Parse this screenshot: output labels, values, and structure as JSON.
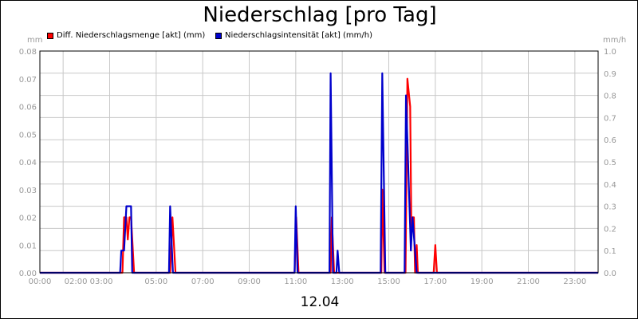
{
  "chart_data": {
    "type": "line",
    "title": "Niederschlag [pro Tag]",
    "left_unit": "mm",
    "right_unit": "mm/h",
    "date_label": "12.04",
    "x_ticks": [
      "00:00",
      "02:00 03:00",
      "05:00",
      "07:00",
      "09:00",
      "11:00",
      "13:00",
      "15:00",
      "17:00",
      "19:00",
      "21:00",
      "23:00"
    ],
    "y_left_ticks": [
      "0.00",
      "0.01",
      "0.02",
      "0.03",
      "0.04",
      "0.05",
      "0.06",
      "0.07",
      "0.08"
    ],
    "y_right_ticks": [
      "0.0",
      "0.1",
      "0.2",
      "0.3",
      "0.4",
      "0.5",
      "0.6",
      "0.7",
      "0.8",
      "0.9",
      "1.0"
    ],
    "ylim_left": [
      0,
      0.08
    ],
    "ylim_right": [
      0,
      1.0
    ],
    "xlim_hours": [
      0,
      24
    ],
    "grid": true,
    "legend_position": "top-left",
    "series": [
      {
        "name": "Diff. Niederschlagsmenge [akt] (mm)",
        "color": "#ff0000",
        "axis": "left",
        "points": [
          [
            0,
            0
          ],
          [
            3.55,
            0
          ],
          [
            3.62,
            0.02
          ],
          [
            3.72,
            0.02
          ],
          [
            3.78,
            0.012
          ],
          [
            3.85,
            0.02
          ],
          [
            3.92,
            0.02
          ],
          [
            4.05,
            0
          ],
          [
            5.6,
            0
          ],
          [
            5.7,
            0.02
          ],
          [
            5.83,
            0
          ],
          [
            10.95,
            0
          ],
          [
            11.02,
            0.02
          ],
          [
            11.12,
            0
          ],
          [
            12.5,
            0
          ],
          [
            12.55,
            0.02
          ],
          [
            12.65,
            0
          ],
          [
            14.68,
            0
          ],
          [
            14.72,
            0.03
          ],
          [
            14.82,
            0
          ],
          [
            15.72,
            0
          ],
          [
            15.8,
            0.07
          ],
          [
            15.92,
            0.06
          ],
          [
            15.97,
            0.016
          ],
          [
            16.02,
            0.02
          ],
          [
            16.08,
            0.02
          ],
          [
            16.13,
            0
          ],
          [
            16.2,
            0.01
          ],
          [
            16.25,
            0
          ],
          [
            16.93,
            0
          ],
          [
            17.0,
            0.01
          ],
          [
            17.07,
            0
          ],
          [
            24,
            0
          ]
        ]
      },
      {
        "name": "Niederschlagsintensität [akt] (mm/h)",
        "color": "#0000cc",
        "axis": "right",
        "points": [
          [
            0,
            0
          ],
          [
            3.45,
            0
          ],
          [
            3.5,
            0.1
          ],
          [
            3.62,
            0.1
          ],
          [
            3.72,
            0.3
          ],
          [
            3.92,
            0.3
          ],
          [
            3.97,
            0
          ],
          [
            5.55,
            0
          ],
          [
            5.6,
            0.3
          ],
          [
            5.72,
            0
          ],
          [
            10.95,
            0
          ],
          [
            11.0,
            0.3
          ],
          [
            11.08,
            0
          ],
          [
            12.45,
            0
          ],
          [
            12.5,
            0.9
          ],
          [
            12.6,
            0
          ],
          [
            12.75,
            0
          ],
          [
            12.8,
            0.1
          ],
          [
            12.87,
            0
          ],
          [
            14.65,
            0
          ],
          [
            14.72,
            0.9
          ],
          [
            14.85,
            0
          ],
          [
            15.68,
            0
          ],
          [
            15.74,
            0.8
          ],
          [
            15.95,
            0.1
          ],
          [
            16.02,
            0.25
          ],
          [
            16.2,
            0
          ],
          [
            24,
            0
          ]
        ]
      }
    ]
  }
}
